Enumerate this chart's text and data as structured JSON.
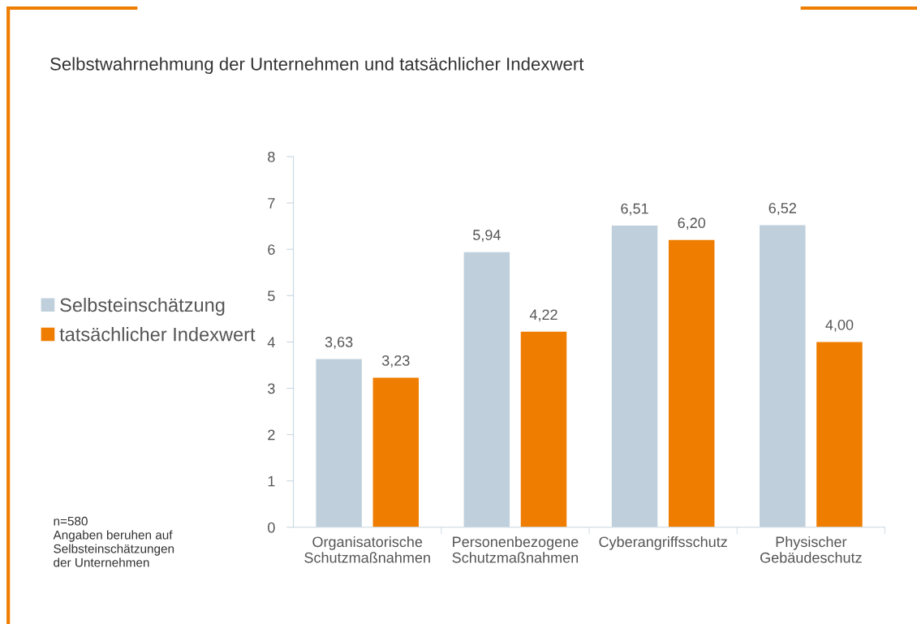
{
  "chart_data": {
    "type": "bar",
    "title": "Selbstwahrnehmung der Unternehmen und tatsächlicher Indexwert",
    "categories": [
      "Organisatorische\nSchutzmaßnahmen",
      "Personenbezogene\nSchutzmaßnahmen",
      "Cyberangriffsschutz",
      "Physischer\nGebäudeschutz"
    ],
    "series": [
      {
        "name": "Selbsteinschätzung",
        "color": "#bfd0dc",
        "values": [
          3.63,
          5.94,
          6.51,
          6.52
        ],
        "value_labels": [
          "3,63",
          "5,94",
          "6,51",
          "6,52"
        ]
      },
      {
        "name": "tatsächlicher Indexwert",
        "color": "#ef7d00",
        "values": [
          3.23,
          4.22,
          6.2,
          4.0
        ],
        "value_labels": [
          "3,23",
          "4,22",
          "6,20",
          "4,00"
        ]
      }
    ],
    "ylim": [
      0,
      8
    ],
    "yticks": [
      0,
      1,
      2,
      3,
      4,
      5,
      6,
      7,
      8
    ],
    "grid": false,
    "legend": "left",
    "annotations": [
      "n=580\nAngaben beruhen auf\nSelbsteinschätzungen\nder Unternehmen"
    ]
  }
}
